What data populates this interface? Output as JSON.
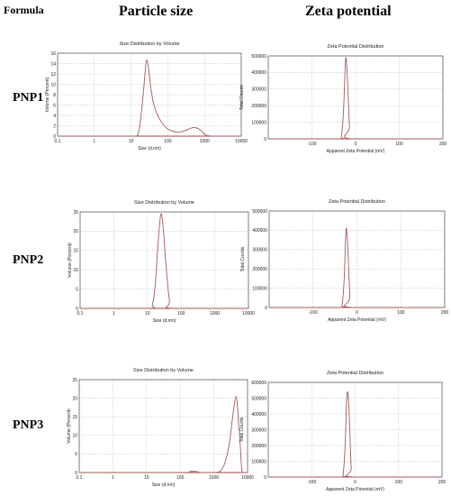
{
  "headers": {
    "formula": "Formula",
    "particle_size": "Particle size",
    "zeta_potential": "Zeta potential"
  },
  "rows": [
    "PNP1",
    "PNP2",
    "PNP3"
  ],
  "colors": {
    "curve": "#a05a5a",
    "baseline": "#b03030",
    "grid": "#a0a0a0",
    "frame": "#333333"
  },
  "chart_data": [
    {
      "id": "size-pnp1",
      "type": "line",
      "title": "Size Distribution by Volume",
      "xlabel": "Size (d.nm)",
      "ylabel": "Volume (Percent)",
      "xscale": "log",
      "xlim": [
        0.1,
        10000
      ],
      "ylim": [
        0,
        16
      ],
      "xticks": [
        0.1,
        1,
        10,
        100,
        1000,
        10000
      ],
      "xticklabels": [
        "0.1",
        "1",
        "10",
        "100",
        "1000",
        "10000"
      ],
      "yticks": [
        0,
        2,
        4,
        6,
        8,
        10,
        12,
        14,
        16
      ],
      "yticklabels": [
        "0",
        "2",
        "4",
        "6",
        "8",
        "10",
        "12",
        "14",
        "16"
      ],
      "x": [
        0.1,
        10,
        15,
        18,
        22,
        26,
        30,
        35,
        42,
        55,
        80,
        120,
        200,
        300,
        450,
        600,
        800,
        1000,
        1500,
        10000
      ],
      "y": [
        0,
        0,
        0.2,
        3,
        9,
        14.5,
        13,
        9,
        6,
        3.8,
        2,
        1.1,
        0.8,
        1.1,
        1.6,
        1.6,
        1.1,
        0.4,
        0,
        0
      ]
    },
    {
      "id": "zeta-pnp1",
      "type": "line",
      "title": "Zeta Potential Distribution",
      "xlabel": "Apparent Zeta Potential (mV)",
      "ylabel": "Total Counts",
      "xlim": [
        -200,
        200
      ],
      "ylim": [
        0,
        500000
      ],
      "xticks": [
        -100,
        0,
        100,
        200
      ],
      "xticklabels": [
        "-100",
        "0",
        "100",
        "200"
      ],
      "yticks": [
        0,
        100000,
        200000,
        300000,
        400000,
        500000
      ],
      "yticklabels": [
        "0",
        "100000",
        "200000",
        "300000",
        "400000",
        "500000"
      ],
      "x": [
        -200,
        -40,
        -33,
        -28,
        -24,
        -22,
        -19,
        -14,
        -10,
        200
      ],
      "y": [
        0,
        0,
        10000,
        150000,
        420000,
        490000,
        380000,
        80000,
        0,
        0
      ]
    },
    {
      "id": "size-pnp2",
      "type": "line",
      "title": "Size Distribution by Volume",
      "xlabel": "Size (d.nm)",
      "ylabel": "Volume (Percent)",
      "xscale": "log",
      "xlim": [
        0.1,
        10000
      ],
      "ylim": [
        0,
        25
      ],
      "xticks": [
        0.1,
        1,
        10,
        100,
        1000,
        10000
      ],
      "xticklabels": [
        "0.1",
        "1",
        "10",
        "100",
        "1000",
        "10000"
      ],
      "yticks": [
        0,
        5,
        10,
        15,
        20,
        25
      ],
      "yticklabels": [
        "0",
        "5",
        "10",
        "15",
        "20",
        "25"
      ],
      "x": [
        0.1,
        11,
        14,
        17,
        20,
        23,
        26,
        30,
        35,
        45,
        55,
        10000
      ],
      "y": [
        0,
        0,
        1,
        6,
        15,
        22,
        24.5,
        20,
        12,
        2,
        0,
        0
      ]
    },
    {
      "id": "zeta-pnp2",
      "type": "line",
      "title": "Zeta Potential Distribution",
      "xlabel": "Apparent Zeta Potential (mV)",
      "ylabel": "Total Counts",
      "xlim": [
        -200,
        200
      ],
      "ylim": [
        0,
        500000
      ],
      "xticks": [
        -100,
        0,
        100,
        200
      ],
      "xticklabels": [
        "-100",
        "0",
        "100",
        "200"
      ],
      "yticks": [
        0,
        100000,
        200000,
        300000,
        400000,
        500000
      ],
      "yticklabels": [
        "0",
        "100000",
        "200000",
        "300000",
        "400000",
        "500000"
      ],
      "x": [
        -200,
        -40,
        -34,
        -29,
        -26,
        -24,
        -21,
        -16,
        -12,
        200
      ],
      "y": [
        0,
        0,
        10000,
        150000,
        350000,
        410000,
        320000,
        60000,
        0,
        0
      ]
    },
    {
      "id": "size-pnp3",
      "type": "line",
      "title": "Size Distribution by Volume",
      "xlabel": "Size (d.nm)",
      "ylabel": "Volume (Percent)",
      "xscale": "log",
      "xlim": [
        0.1,
        10000
      ],
      "ylim": [
        0,
        25
      ],
      "xticks": [
        0.1,
        1,
        10,
        100,
        1000,
        10000
      ],
      "xticklabels": [
        "0.1",
        "1",
        "10",
        "100",
        "1000",
        "10000"
      ],
      "yticks": [
        0,
        5,
        10,
        15,
        20,
        25
      ],
      "yticklabels": [
        "0",
        "5",
        "10",
        "15",
        "20",
        "25"
      ],
      "x": [
        0.1,
        100,
        200,
        300,
        400,
        1000,
        1500,
        2000,
        2500,
        3000,
        3500,
        4000,
        4500,
        5000,
        6000,
        7000,
        10000
      ],
      "y": [
        0,
        0,
        0.3,
        0.3,
        0,
        0,
        0.3,
        2,
        5,
        9,
        14,
        18,
        20.5,
        18,
        8,
        0,
        0
      ]
    },
    {
      "id": "zeta-pnp3",
      "type": "line",
      "title": "Zeta Potential Distribution",
      "xlabel": "Apparent Zeta Potential (mV)",
      "ylabel": "Total Counts",
      "xlim": [
        -200,
        200
      ],
      "ylim": [
        0,
        600000
      ],
      "xticks": [
        -100,
        0,
        100,
        200
      ],
      "xticklabels": [
        "-100",
        "0",
        "100",
        "200"
      ],
      "yticks": [
        0,
        100000,
        200000,
        300000,
        400000,
        500000,
        600000
      ],
      "yticklabels": [
        "0",
        "100000",
        "200000",
        "300000",
        "400000",
        "500000",
        "600000"
      ],
      "x": [
        -200,
        -35,
        -28,
        -23,
        -20,
        -17,
        -14,
        -9,
        -5,
        200
      ],
      "y": [
        0,
        0,
        10000,
        200000,
        460000,
        540000,
        420000,
        60000,
        0,
        0
      ]
    }
  ]
}
